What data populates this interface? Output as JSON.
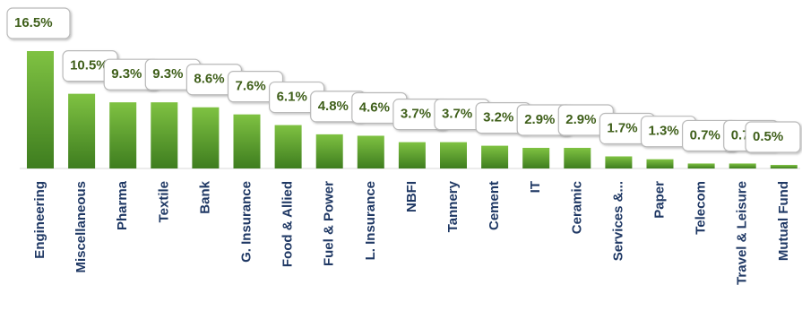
{
  "chart_data": {
    "type": "bar",
    "title": "",
    "xlabel": "",
    "ylabel": "",
    "ylim": [
      0,
      16.5
    ],
    "grid": false,
    "legend": "none",
    "categories": [
      "Engineering",
      "Miscellaneous",
      "Pharma",
      "Textile",
      "Bank",
      "G. Insurance",
      "Food & Allied",
      "Fuel & Power",
      "L. Insurance",
      "NBFI",
      "Tannery",
      "Cement",
      "IT",
      "Ceramic",
      "Services &...",
      "Paper",
      "Telecom",
      "Travel & Leisure",
      "Mutual Fund"
    ],
    "values": [
      16.5,
      10.5,
      9.3,
      9.3,
      8.6,
      7.6,
      6.1,
      4.8,
      4.6,
      3.7,
      3.7,
      3.2,
      2.9,
      2.9,
      1.7,
      1.3,
      0.7,
      0.7,
      0.5
    ],
    "data_labels": [
      "16.5%",
      "10.5%",
      "9.3%",
      "9.3%",
      "8.6%",
      "7.6%",
      "6.1%",
      "4.8%",
      "4.6%",
      "3.7%",
      "3.7%",
      "3.2%",
      "2.9%",
      "2.9%",
      "1.7%",
      "1.3%",
      "0.7%",
      "0.7%",
      "0.5%"
    ],
    "colors": {
      "bar_top": "#7fc242",
      "bar_bottom": "#3e7d1f",
      "label_text": "#3f5f1a",
      "category_text": "#1f3864"
    }
  }
}
